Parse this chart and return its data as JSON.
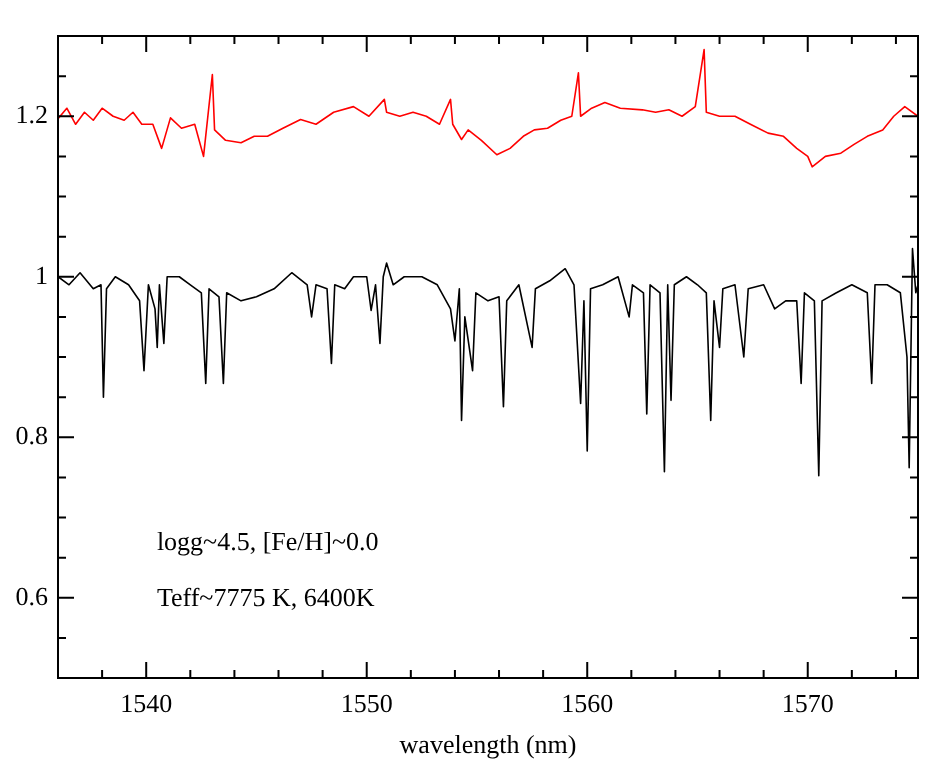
{
  "chart_data": {
    "type": "line",
    "xlabel": "wavelength (nm)",
    "xlim": [
      1536,
      1575
    ],
    "xticks": [
      {
        "value": 1536,
        "label": null
      },
      {
        "value": 1538,
        "label": null
      },
      1540,
      {
        "value": 1542,
        "label": null
      },
      {
        "value": 1544,
        "label": null
      },
      {
        "value": 1546,
        "label": null
      },
      {
        "value": 1548,
        "label": null
      },
      1550,
      {
        "value": 1552,
        "label": null
      },
      {
        "value": 1554,
        "label": null
      },
      {
        "value": 1556,
        "label": null
      },
      {
        "value": 1558,
        "label": null
      },
      1560,
      {
        "value": 1562,
        "label": null
      },
      {
        "value": 1564,
        "label": null
      },
      {
        "value": 1566,
        "label": null
      },
      {
        "value": 1568,
        "label": null
      },
      1570,
      {
        "value": 1572,
        "label": null
      },
      {
        "value": 1574,
        "label": null
      }
    ],
    "ylim": [
      0.5,
      1.3
    ],
    "yticks": [
      {
        "value": 0.55,
        "label": null
      },
      0.6,
      {
        "value": 0.65,
        "label": null
      },
      {
        "value": 0.7,
        "label": null
      },
      {
        "value": 0.75,
        "label": null
      },
      0.8,
      {
        "value": 0.85,
        "label": null
      },
      {
        "value": 0.9,
        "label": null
      },
      {
        "value": 0.95,
        "label": null
      },
      1,
      {
        "value": 1.05,
        "label": null
      },
      {
        "value": 1.1,
        "label": null
      },
      {
        "value": 1.15,
        "label": null
      },
      1.2,
      {
        "value": 1.25,
        "label": null
      }
    ],
    "grid": false,
    "legend": false,
    "marker": "none",
    "line_style": "solid",
    "annotations": [
      "logg~4.5, [Fe/H]~0.0",
      "Teff~7775 K, 6400K"
    ],
    "series": [
      {
        "color": "#ff0000",
        "x": [
          1536,
          1536.4,
          1536.8,
          1537.2,
          1537.6,
          1538,
          1538.5,
          1539,
          1539.4,
          1539.8,
          1540.3,
          1540.7,
          1541.1,
          1541.6,
          1542.2,
          1542.6,
          1543,
          1543.1,
          1543.6,
          1544.3,
          1544.9,
          1545.5,
          1546.2,
          1547,
          1547.7,
          1548.5,
          1549.4,
          1550.1,
          1550.8,
          1550.9,
          1551.5,
          1552.1,
          1552.7,
          1553.3,
          1553.8,
          1553.9,
          1554.3,
          1554.6,
          1555.2,
          1555.9,
          1556.5,
          1557.1,
          1557.6,
          1558.2,
          1558.8,
          1559.3,
          1559.6,
          1559.7,
          1560.2,
          1560.8,
          1561.5,
          1562.5,
          1563.1,
          1563.7,
          1564.3,
          1564.9,
          1565.3,
          1565.4,
          1566,
          1566.7,
          1567.4,
          1568.2,
          1568.9,
          1569.5,
          1570,
          1570.2,
          1570.8,
          1571.5,
          1572.1,
          1572.7,
          1573.4,
          1573.9,
          1574.4,
          1575
        ],
        "values": [
          1.197,
          1.21,
          1.19,
          1.205,
          1.195,
          1.21,
          1.2,
          1.195,
          1.205,
          1.19,
          1.19,
          1.16,
          1.198,
          1.185,
          1.19,
          1.15,
          1.252,
          1.183,
          1.17,
          1.167,
          1.175,
          1.175,
          1.185,
          1.196,
          1.19,
          1.205,
          1.212,
          1.2,
          1.221,
          1.205,
          1.2,
          1.205,
          1.2,
          1.19,
          1.221,
          1.19,
          1.171,
          1.183,
          1.17,
          1.152,
          1.16,
          1.175,
          1.183,
          1.185,
          1.195,
          1.2,
          1.254,
          1.2,
          1.21,
          1.217,
          1.21,
          1.208,
          1.205,
          1.208,
          1.2,
          1.212,
          1.283,
          1.205,
          1.2,
          1.2,
          1.19,
          1.179,
          1.175,
          1.16,
          1.15,
          1.137,
          1.15,
          1.154,
          1.165,
          1.175,
          1.183,
          1.2,
          1.212,
          1.2
        ]
      },
      {
        "color": "#000000",
        "x": [
          1536,
          1536.5,
          1537,
          1537.6,
          1537.95,
          1538.06,
          1538.2,
          1538.6,
          1539.2,
          1539.7,
          1539.9,
          1540.1,
          1540.4,
          1540.5,
          1540.6,
          1540.8,
          1540.95,
          1541.5,
          1542,
          1542.5,
          1542.7,
          1542.85,
          1543.3,
          1543.5,
          1543.65,
          1544.3,
          1545,
          1545.8,
          1546.6,
          1547.3,
          1547.5,
          1547.7,
          1548.2,
          1548.4,
          1548.55,
          1549,
          1549.4,
          1550,
          1550.2,
          1550.4,
          1550.6,
          1550.75,
          1550.9,
          1551.2,
          1551.7,
          1552.5,
          1553.2,
          1553.8,
          1554,
          1554.2,
          1554.3,
          1554.45,
          1554.8,
          1554.95,
          1555.5,
          1556,
          1556.2,
          1556.35,
          1556.9,
          1557.5,
          1557.65,
          1558.3,
          1559,
          1559.4,
          1559.7,
          1559.85,
          1560,
          1560.15,
          1560.7,
          1561.4,
          1561.9,
          1562.05,
          1562.55,
          1562.7,
          1562.85,
          1563.3,
          1563.5,
          1563.65,
          1563.8,
          1563.95,
          1564.5,
          1565,
          1565.4,
          1565.6,
          1565.75,
          1566,
          1566.15,
          1566.7,
          1567.1,
          1567.3,
          1568,
          1568.5,
          1569,
          1569.5,
          1569.7,
          1569.85,
          1570.3,
          1570.5,
          1570.65,
          1571.3,
          1572,
          1572.7,
          1572.9,
          1573.05,
          1573.6,
          1574.2,
          1574.5,
          1574.6,
          1574.75,
          1574.9,
          1575
        ],
        "values": [
          1,
          0.99,
          1.005,
          0.985,
          0.99,
          0.85,
          0.985,
          1,
          0.99,
          0.97,
          0.883,
          0.99,
          0.96,
          0.912,
          0.99,
          0.917,
          1,
          1,
          0.99,
          0.98,
          0.867,
          0.985,
          0.975,
          0.867,
          0.98,
          0.97,
          0.975,
          0.985,
          1.005,
          0.99,
          0.95,
          0.99,
          0.985,
          0.892,
          0.99,
          0.985,
          1,
          1,
          0.958,
          0.99,
          0.917,
          1,
          1.017,
          0.99,
          1,
          1,
          0.99,
          0.96,
          0.92,
          0.985,
          0.821,
          0.95,
          0.883,
          0.98,
          0.97,
          0.975,
          0.838,
          0.97,
          0.99,
          0.912,
          0.985,
          0.995,
          1.01,
          0.99,
          0.842,
          0.97,
          0.783,
          0.985,
          0.99,
          1,
          0.95,
          0.99,
          0.98,
          0.829,
          0.99,
          0.98,
          0.757,
          0.99,
          0.846,
          0.99,
          1,
          0.99,
          0.98,
          0.821,
          0.97,
          0.912,
          0.985,
          0.99,
          0.9,
          0.985,
          0.99,
          0.96,
          0.97,
          0.97,
          0.867,
          0.98,
          0.97,
          0.752,
          0.97,
          0.98,
          0.99,
          0.98,
          0.867,
          0.99,
          0.99,
          0.98,
          0.9,
          0.762,
          1.035,
          0.98,
          0.99
        ]
      }
    ]
  }
}
